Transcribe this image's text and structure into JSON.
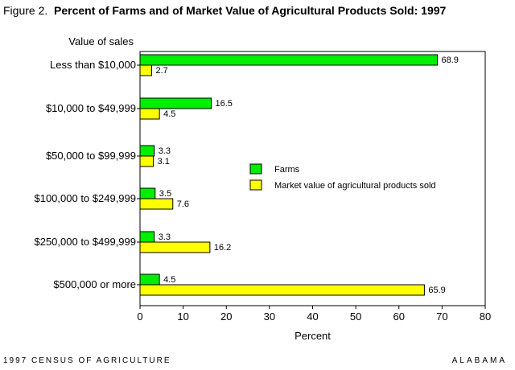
{
  "figure": {
    "label": "Figure 2.",
    "title": "Percent of Farms and of Market Value of Agricultural Products Sold: 1997"
  },
  "footer": {
    "left": "1997 CENSUS OF AGRICULTURE",
    "right": "ALABAMA"
  },
  "chart_data": {
    "type": "bar",
    "orientation": "horizontal",
    "categories": [
      "Less than  $10,000",
      "$10,000 to $49,999",
      "$50,000 to $99,999",
      "$100,000 to $249,999",
      "$250,000 to $499,999",
      "$500,000 or more"
    ],
    "series": [
      {
        "name": "Farms",
        "color": "#00ee00",
        "values": [
          68.9,
          16.5,
          3.3,
          3.5,
          3.3,
          4.5
        ]
      },
      {
        "name": "Market value of agricultural products sold",
        "color": "#ffff00",
        "values": [
          2.7,
          4.5,
          3.1,
          7.6,
          16.2,
          65.9
        ]
      }
    ],
    "value_labels": [
      [
        "68.9",
        "16.5",
        "3.3",
        "3.5",
        "3.3",
        "4.5"
      ],
      [
        "2.7",
        "4.5",
        "3.1",
        "7.6",
        "16.2",
        "65.9"
      ]
    ],
    "category_axis_title": "Value of sales",
    "xlabel": "Percent",
    "xlim": [
      0,
      80
    ],
    "xticks": [
      "0",
      "10",
      "20",
      "30",
      "40",
      "50",
      "60",
      "70",
      "80"
    ],
    "grid": false,
    "legend_position": "center-right"
  }
}
